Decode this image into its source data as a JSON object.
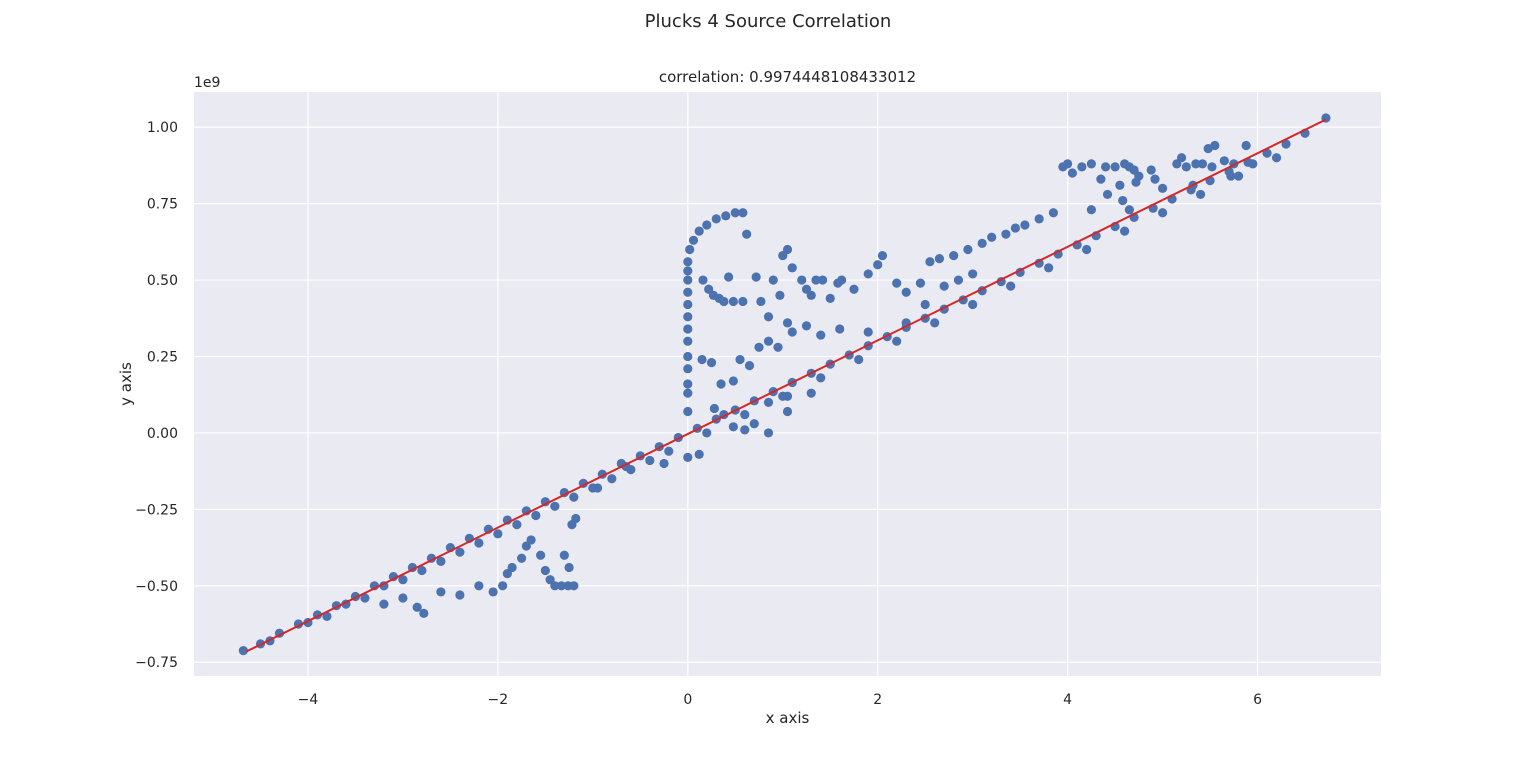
{
  "figure": {
    "suptitle": "Plucks 4 Source Correlation"
  },
  "colors": {
    "background": "#EAEAF2",
    "grid": "#FFFFFF",
    "points": "#4C72B0",
    "fit_line": "#D62728",
    "text": "#262626"
  },
  "chart_data": {
    "type": "scatter",
    "title": "correlation: 0.9974448108433012",
    "xlabel": "x axis",
    "ylabel": "y axis",
    "y_offset_label": "1e9",
    "xlim": [
      -5.2,
      7.3
    ],
    "ylim": [
      -0.795,
      1.115
    ],
    "x_ticks": [
      -4,
      -2,
      0,
      2,
      4,
      6
    ],
    "x_tick_labels": [
      "−4",
      "−2",
      "0",
      "2",
      "4",
      "6"
    ],
    "y_ticks": [
      -0.75,
      -0.5,
      -0.25,
      0.0,
      0.25,
      0.5,
      0.75,
      1.0
    ],
    "y_tick_labels": [
      "−0.75",
      "−0.50",
      "−0.25",
      "0.00",
      "0.25",
      "0.50",
      "0.75",
      "1.00"
    ],
    "grid": true,
    "series": [
      {
        "kind": "scatter",
        "description_free": true,
        "points": [
          [
            -4.68,
            -0.712
          ],
          [
            -4.5,
            -0.69
          ],
          [
            -4.3,
            -0.655
          ],
          [
            -4.1,
            -0.625
          ],
          [
            -3.9,
            -0.595
          ],
          [
            -3.7,
            -0.565
          ],
          [
            -3.5,
            -0.535
          ],
          [
            -3.3,
            -0.5
          ],
          [
            -3.1,
            -0.47
          ],
          [
            -2.9,
            -0.44
          ],
          [
            -2.7,
            -0.41
          ],
          [
            -2.5,
            -0.375
          ],
          [
            -2.3,
            -0.345
          ],
          [
            -2.1,
            -0.315
          ],
          [
            -1.9,
            -0.285
          ],
          [
            -1.7,
            -0.255
          ],
          [
            -1.5,
            -0.225
          ],
          [
            -1.3,
            -0.195
          ],
          [
            -1.1,
            -0.165
          ],
          [
            -0.9,
            -0.135
          ],
          [
            -0.7,
            -0.1
          ],
          [
            -0.5,
            -0.075
          ],
          [
            -0.3,
            -0.045
          ],
          [
            -0.1,
            -0.015
          ],
          [
            0.1,
            0.015
          ],
          [
            0.3,
            0.045
          ],
          [
            0.5,
            0.075
          ],
          [
            0.7,
            0.105
          ],
          [
            0.9,
            0.135
          ],
          [
            1.1,
            0.165
          ],
          [
            1.3,
            0.195
          ],
          [
            1.5,
            0.225
          ],
          [
            1.7,
            0.255
          ],
          [
            1.9,
            0.285
          ],
          [
            2.1,
            0.315
          ],
          [
            2.3,
            0.345
          ],
          [
            2.5,
            0.375
          ],
          [
            2.7,
            0.405
          ],
          [
            2.9,
            0.435
          ],
          [
            3.1,
            0.465
          ],
          [
            3.3,
            0.495
          ],
          [
            3.5,
            0.525
          ],
          [
            3.7,
            0.555
          ],
          [
            3.9,
            0.585
          ],
          [
            4.1,
            0.615
          ],
          [
            4.3,
            0.645
          ],
          [
            4.5,
            0.675
          ],
          [
            4.7,
            0.705
          ],
          [
            4.9,
            0.735
          ],
          [
            5.1,
            0.765
          ],
          [
            5.3,
            0.795
          ],
          [
            5.5,
            0.825
          ],
          [
            5.7,
            0.855
          ],
          [
            5.9,
            0.885
          ],
          [
            6.1,
            0.915
          ],
          [
            6.3,
            0.945
          ],
          [
            6.5,
            0.98
          ],
          [
            6.72,
            1.03
          ],
          [
            -4.4,
            -0.68
          ],
          [
            -4.0,
            -0.62
          ],
          [
            -3.6,
            -0.56
          ],
          [
            -3.2,
            -0.5
          ],
          [
            -2.8,
            -0.45
          ],
          [
            -2.4,
            -0.39
          ],
          [
            -2.0,
            -0.33
          ],
          [
            -1.6,
            -0.27
          ],
          [
            -1.2,
            -0.21
          ],
          [
            -0.8,
            -0.15
          ],
          [
            -0.4,
            -0.09
          ],
          [
            -3.8,
            -0.6
          ],
          [
            -3.4,
            -0.54
          ],
          [
            -3.0,
            -0.48
          ],
          [
            -2.6,
            -0.42
          ],
          [
            -2.2,
            -0.36
          ],
          [
            -1.8,
            -0.3
          ],
          [
            -1.4,
            -0.24
          ],
          [
            -1.0,
            -0.18
          ],
          [
            -0.6,
            -0.12
          ],
          [
            -0.2,
            -0.06
          ],
          [
            0.2,
            0.0
          ],
          [
            0.6,
            0.06
          ],
          [
            1.0,
            0.12
          ],
          [
            1.4,
            0.18
          ],
          [
            1.8,
            0.24
          ],
          [
            2.2,
            0.3
          ],
          [
            2.6,
            0.36
          ],
          [
            3.0,
            0.42
          ],
          [
            3.4,
            0.48
          ],
          [
            3.8,
            0.54
          ],
          [
            4.2,
            0.6
          ],
          [
            4.6,
            0.66
          ],
          [
            5.0,
            0.72
          ],
          [
            5.4,
            0.78
          ],
          [
            5.8,
            0.84
          ],
          [
            6.2,
            0.9
          ],
          [
            -3.2,
            -0.56
          ],
          [
            -3.0,
            -0.54
          ],
          [
            -2.85,
            -0.57
          ],
          [
            -2.78,
            -0.59
          ],
          [
            -2.6,
            -0.52
          ],
          [
            -2.4,
            -0.53
          ],
          [
            -2.2,
            -0.5
          ],
          [
            -2.05,
            -0.52
          ],
          [
            -1.95,
            -0.5
          ],
          [
            -1.9,
            -0.46
          ],
          [
            -1.85,
            -0.44
          ],
          [
            -1.75,
            -0.41
          ],
          [
            -1.7,
            -0.37
          ],
          [
            -1.65,
            -0.35
          ],
          [
            -1.55,
            -0.4
          ],
          [
            -1.5,
            -0.45
          ],
          [
            -1.45,
            -0.48
          ],
          [
            -1.4,
            -0.5
          ],
          [
            -1.33,
            -0.5
          ],
          [
            -1.26,
            -0.5
          ],
          [
            -1.2,
            -0.5
          ],
          [
            -1.25,
            -0.44
          ],
          [
            -1.3,
            -0.4
          ],
          [
            -1.22,
            -0.3
          ],
          [
            -1.18,
            -0.28
          ],
          [
            -0.95,
            -0.18
          ],
          [
            -0.65,
            -0.11
          ],
          [
            -0.25,
            -0.1
          ],
          [
            0.0,
            -0.08
          ],
          [
            0.0,
            0.07
          ],
          [
            0.0,
            0.13
          ],
          [
            0.0,
            0.16
          ],
          [
            0.0,
            0.21
          ],
          [
            0.0,
            0.25
          ],
          [
            0.0,
            0.3
          ],
          [
            0.0,
            0.34
          ],
          [
            0.0,
            0.38
          ],
          [
            0.0,
            0.42
          ],
          [
            0.0,
            0.46
          ],
          [
            0.0,
            0.5
          ],
          [
            0.0,
            0.53
          ],
          [
            0.0,
            0.56
          ],
          [
            0.02,
            0.6
          ],
          [
            0.06,
            0.63
          ],
          [
            0.12,
            0.66
          ],
          [
            0.2,
            0.68
          ],
          [
            0.3,
            0.7
          ],
          [
            0.4,
            0.71
          ],
          [
            0.5,
            0.72
          ],
          [
            0.58,
            0.72
          ],
          [
            0.62,
            0.65
          ],
          [
            0.16,
            0.5
          ],
          [
            0.22,
            0.47
          ],
          [
            0.27,
            0.45
          ],
          [
            0.33,
            0.44
          ],
          [
            0.38,
            0.43
          ],
          [
            0.43,
            0.51
          ],
          [
            0.48,
            0.43
          ],
          [
            0.58,
            0.43
          ],
          [
            0.72,
            0.51
          ],
          [
            0.77,
            0.43
          ],
          [
            0.85,
            0.38
          ],
          [
            0.9,
            0.5
          ],
          [
            0.97,
            0.45
          ],
          [
            1.0,
            0.58
          ],
          [
            1.05,
            0.6
          ],
          [
            1.1,
            0.54
          ],
          [
            1.2,
            0.5
          ],
          [
            1.25,
            0.47
          ],
          [
            1.3,
            0.45
          ],
          [
            1.35,
            0.5
          ],
          [
            1.42,
            0.5
          ],
          [
            1.5,
            0.44
          ],
          [
            1.58,
            0.49
          ],
          [
            1.62,
            0.5
          ],
          [
            1.75,
            0.47
          ],
          [
            1.9,
            0.52
          ],
          [
            2.0,
            0.55
          ],
          [
            2.05,
            0.58
          ],
          [
            2.2,
            0.49
          ],
          [
            2.3,
            0.46
          ],
          [
            2.45,
            0.49
          ],
          [
            2.55,
            0.56
          ],
          [
            2.65,
            0.57
          ],
          [
            2.8,
            0.58
          ],
          [
            2.95,
            0.6
          ],
          [
            3.1,
            0.62
          ],
          [
            3.2,
            0.64
          ],
          [
            3.35,
            0.65
          ],
          [
            3.45,
            0.67
          ],
          [
            3.55,
            0.68
          ],
          [
            3.7,
            0.7
          ],
          [
            3.85,
            0.72
          ],
          [
            2.5,
            0.42
          ],
          [
            2.7,
            0.48
          ],
          [
            2.85,
            0.5
          ],
          [
            3.0,
            0.52
          ],
          [
            2.3,
            0.36
          ],
          [
            1.9,
            0.33
          ],
          [
            1.6,
            0.34
          ],
          [
            1.4,
            0.32
          ],
          [
            1.25,
            0.35
          ],
          [
            1.1,
            0.33
          ],
          [
            1.05,
            0.36
          ],
          [
            0.95,
            0.28
          ],
          [
            0.85,
            0.3
          ],
          [
            0.75,
            0.28
          ],
          [
            0.65,
            0.22
          ],
          [
            0.55,
            0.24
          ],
          [
            0.48,
            0.17
          ],
          [
            0.35,
            0.16
          ],
          [
            0.25,
            0.23
          ],
          [
            0.15,
            0.24
          ],
          [
            0.28,
            0.08
          ],
          [
            0.38,
            0.06
          ],
          [
            0.48,
            0.02
          ],
          [
            0.6,
            0.01
          ],
          [
            0.7,
            0.03
          ],
          [
            0.85,
            0.0
          ],
          [
            1.05,
            0.07
          ],
          [
            1.3,
            0.13
          ],
          [
            1.05,
            0.12
          ],
          [
            0.85,
            0.1
          ],
          [
            0.12,
            -0.07
          ],
          [
            3.95,
            0.87
          ],
          [
            4.0,
            0.88
          ],
          [
            4.05,
            0.85
          ],
          [
            4.15,
            0.87
          ],
          [
            4.25,
            0.88
          ],
          [
            4.35,
            0.83
          ],
          [
            4.4,
            0.87
          ],
          [
            4.5,
            0.87
          ],
          [
            4.6,
            0.88
          ],
          [
            4.65,
            0.87
          ],
          [
            4.7,
            0.86
          ],
          [
            4.75,
            0.84
          ],
          [
            4.88,
            0.86
          ],
          [
            4.92,
            0.83
          ],
          [
            4.72,
            0.82
          ],
          [
            4.55,
            0.81
          ],
          [
            4.42,
            0.78
          ],
          [
            4.25,
            0.73
          ],
          [
            4.58,
            0.76
          ],
          [
            4.65,
            0.73
          ],
          [
            5.0,
            0.8
          ],
          [
            5.15,
            0.88
          ],
          [
            5.2,
            0.9
          ],
          [
            5.25,
            0.87
          ],
          [
            5.35,
            0.88
          ],
          [
            5.42,
            0.88
          ],
          [
            5.48,
            0.93
          ],
          [
            5.55,
            0.94
          ],
          [
            5.65,
            0.89
          ],
          [
            5.75,
            0.88
          ],
          [
            5.88,
            0.94
          ],
          [
            5.95,
            0.88
          ],
          [
            5.52,
            0.87
          ],
          [
            5.72,
            0.84
          ],
          [
            5.32,
            0.81
          ]
        ]
      }
    ],
    "fit_line": {
      "x": [
        -4.65,
        6.72
      ],
      "y": [
        -0.715,
        1.025
      ]
    }
  }
}
